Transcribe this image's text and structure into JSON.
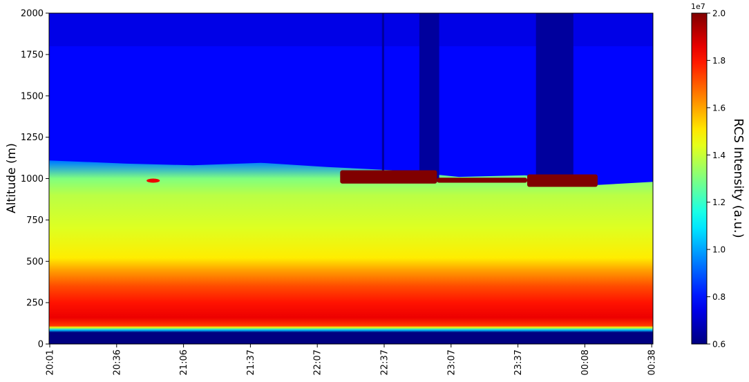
{
  "chart_data": {
    "type": "heatmap",
    "title": "",
    "ylabel": "Altitude (m)",
    "xlabel": "",
    "ylim": [
      0,
      2000
    ],
    "yticks": [
      0,
      250,
      500,
      750,
      1000,
      1250,
      1500,
      1750,
      2000
    ],
    "xticks": [
      "20:01",
      "20:36",
      "21:06",
      "21:37",
      "22:07",
      "22:37",
      "23:07",
      "23:37",
      "00:08",
      "00:38"
    ],
    "colorbar": {
      "label": "RCS Intensity (a.u.)",
      "scale_label": "1e7",
      "range": [
        0.6,
        2.0
      ],
      "ticks": [
        "0.6",
        "0.8",
        "1.0",
        "1.2",
        "1.4",
        "1.6",
        "1.8",
        "2.0"
      ],
      "colormap": "jet"
    },
    "profile": [
      {
        "altitude": 0,
        "value": 0.6
      },
      {
        "altitude": 70,
        "value": 0.6
      },
      {
        "altitude": 85,
        "value": 1.05
      },
      {
        "altitude": 100,
        "value": 1.45
      },
      {
        "altitude": 110,
        "value": 1.75
      },
      {
        "altitude": 160,
        "value": 1.85
      },
      {
        "altitude": 250,
        "value": 1.8
      },
      {
        "altitude": 350,
        "value": 1.72
      },
      {
        "altitude": 450,
        "value": 1.6
      },
      {
        "altitude": 520,
        "value": 1.5
      },
      {
        "altitude": 700,
        "value": 1.43
      },
      {
        "altitude": 900,
        "value": 1.38
      },
      {
        "altitude": 1000,
        "value": 1.3
      },
      {
        "altitude": 1100,
        "value": 0.95
      },
      {
        "altitude": 1150,
        "value": 0.78
      },
      {
        "altitude": 1500,
        "value": 0.78
      },
      {
        "altitude": 1620,
        "value": 0.84
      },
      {
        "altitude": 1800,
        "value": 0.75
      },
      {
        "altitude": 2000,
        "value": 0.72
      }
    ],
    "boundary_layer_top": [
      {
        "time": "20:01",
        "altitude": 1110
      },
      {
        "time": "20:36",
        "altitude": 1090
      },
      {
        "time": "21:06",
        "altitude": 1080
      },
      {
        "time": "21:37",
        "altitude": 1095
      },
      {
        "time": "22:07",
        "altitude": 1070
      },
      {
        "time": "22:37",
        "altitude": 1050
      },
      {
        "time": "23:07",
        "altitude": 1010
      },
      {
        "time": "23:37",
        "altitude": 1020
      },
      {
        "time": "00:08",
        "altitude": 960
      },
      {
        "time": "00:38",
        "altitude": 980
      }
    ],
    "cloud_layer": {
      "value": 2.0,
      "segments": [
        {
          "start": "22:13",
          "end": "22:57",
          "bottom": 970,
          "top": 1050
        },
        {
          "start": "22:57",
          "end": "23:38",
          "bottom": 975,
          "top": 1005
        },
        {
          "start": "23:38",
          "end": "00:10",
          "bottom": 950,
          "top": 1025
        }
      ]
    },
    "aerosol_layer": {
      "start": "20:45",
      "end": "20:51",
      "bottom": 975,
      "top": 1000,
      "value": 1.85
    },
    "signal_dropouts": [
      {
        "start": "22:32",
        "end": "22:33"
      },
      {
        "start": "22:49",
        "end": "22:58"
      },
      {
        "start": "23:42",
        "end": "23:59"
      }
    ]
  }
}
